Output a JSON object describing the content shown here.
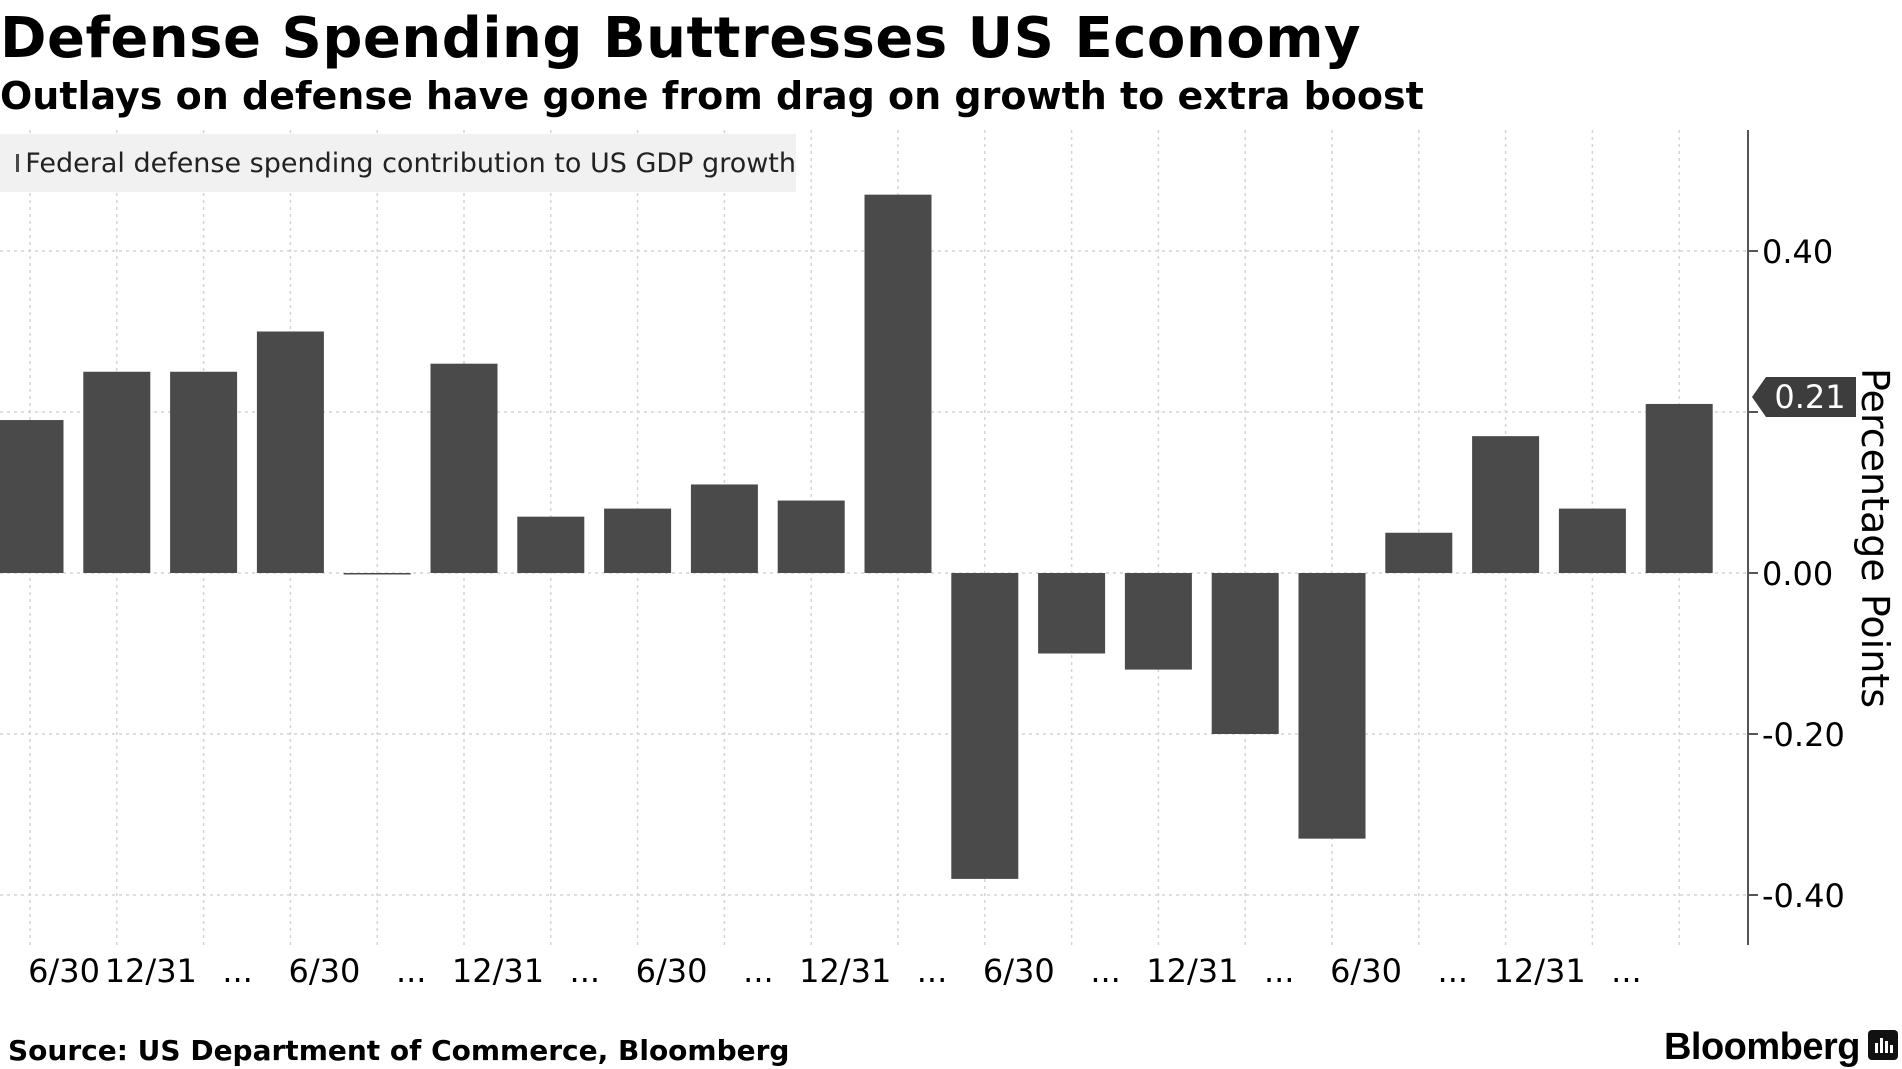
{
  "chart_data": {
    "type": "bar",
    "title": "Defense Spending Buttresses US Economy",
    "subtitle": "Outlays on defense have gone from drag on growth to extra boost",
    "ylabel": "Percentage Points",
    "xlabel": "",
    "series": [
      {
        "name": "Federal defense spending contribution to US GDP growth",
        "color": "#4a4a4a",
        "values": [
          0.19,
          0.25,
          0.25,
          0.3,
          0.0,
          0.26,
          0.07,
          0.08,
          0.11,
          0.09,
          0.47,
          -0.38,
          -0.1,
          -0.12,
          -0.2,
          -0.33,
          0.05,
          0.17,
          0.08,
          0.21
        ]
      }
    ],
    "x_tick_labels": [
      "6/30",
      "12/31",
      "...",
      "6/30",
      "...",
      "12/31",
      "...",
      "6/30",
      "...",
      "12/31",
      "...",
      "6/30",
      "...",
      "12/31",
      "...",
      "6/30",
      "...",
      "12/31",
      "..."
    ],
    "y_ticks": [
      "0.40",
      "0.00",
      "-0.20",
      "-0.40"
    ],
    "ylim": [
      -0.46,
      0.55
    ],
    "y_axis_position": "right",
    "grid": true,
    "legend_position": "top-left",
    "last_value_label": "0.21"
  },
  "source": "Source: US Department of Commerce, Bloomberg",
  "brand": "Bloomberg"
}
